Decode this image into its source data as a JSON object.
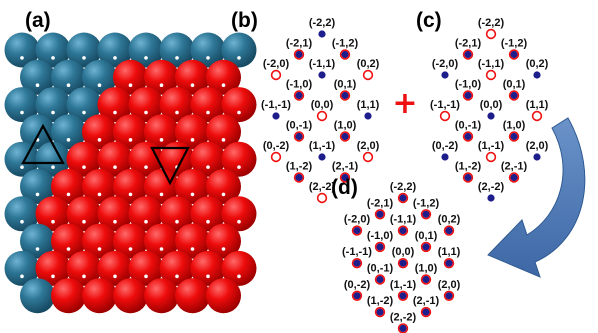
{
  "panels": {
    "a": {
      "label": "(a)"
    },
    "b": {
      "label": "(b)"
    },
    "c": {
      "label": "(c)"
    },
    "d": {
      "label": "(d)"
    }
  },
  "colors": {
    "blue_sphere": "#2b7192",
    "red_sphere": "#e60000",
    "blue_dot": "#1d1d8c",
    "red_ring": "#ee1111",
    "plus": "#ee1111",
    "arrow": "#4a78b5"
  },
  "operator": "+",
  "spot_patterns": {
    "b": [
      {
        "hk": "(-2,2)",
        "kind": "blue"
      },
      {
        "hk": "(-2,1)",
        "kind": "both"
      },
      {
        "hk": "(-1,2)",
        "kind": "both"
      },
      {
        "hk": "(-2,0)",
        "kind": "red"
      },
      {
        "hk": "(-1,1)",
        "kind": "blue"
      },
      {
        "hk": "(0,2)",
        "kind": "red"
      },
      {
        "hk": "(-1,0)",
        "kind": "both"
      },
      {
        "hk": "(0,1)",
        "kind": "both"
      },
      {
        "hk": "(-1,-1)",
        "kind": "blue"
      },
      {
        "hk": "(0,0)",
        "kind": "red"
      },
      {
        "hk": "(1,1)",
        "kind": "blue"
      },
      {
        "hk": "(0,-1)",
        "kind": "both"
      },
      {
        "hk": "(1,0)",
        "kind": "both"
      },
      {
        "hk": "(0,-2)",
        "kind": "red"
      },
      {
        "hk": "(1,-1)",
        "kind": "blue"
      },
      {
        "hk": "(2,0)",
        "kind": "red"
      },
      {
        "hk": "(1,-2)",
        "kind": "both"
      },
      {
        "hk": "(2,-1)",
        "kind": "both"
      },
      {
        "hk": "(2,-2)",
        "kind": "red"
      }
    ],
    "c": [
      {
        "hk": "(-2,2)",
        "kind": "red"
      },
      {
        "hk": "(-2,1)",
        "kind": "both"
      },
      {
        "hk": "(-1,2)",
        "kind": "both"
      },
      {
        "hk": "(-2,0)",
        "kind": "blue"
      },
      {
        "hk": "(-1,1)",
        "kind": "red"
      },
      {
        "hk": "(0,2)",
        "kind": "blue"
      },
      {
        "hk": "(-1,0)",
        "kind": "both"
      },
      {
        "hk": "(0,1)",
        "kind": "both"
      },
      {
        "hk": "(-1,-1)",
        "kind": "red"
      },
      {
        "hk": "(0,0)",
        "kind": "blue"
      },
      {
        "hk": "(1,1)",
        "kind": "red"
      },
      {
        "hk": "(0,-1)",
        "kind": "both"
      },
      {
        "hk": "(1,0)",
        "kind": "both"
      },
      {
        "hk": "(0,-2)",
        "kind": "blue"
      },
      {
        "hk": "(1,-1)",
        "kind": "red"
      },
      {
        "hk": "(2,0)",
        "kind": "blue"
      },
      {
        "hk": "(1,-2)",
        "kind": "both"
      },
      {
        "hk": "(2,-1)",
        "kind": "both"
      },
      {
        "hk": "(2,-2)",
        "kind": "blue"
      }
    ],
    "d": [
      {
        "hk": "(-2,2)",
        "kind": "both"
      },
      {
        "hk": "(-2,1)",
        "kind": "both"
      },
      {
        "hk": "(-1,2)",
        "kind": "both"
      },
      {
        "hk": "(-2,0)",
        "kind": "both"
      },
      {
        "hk": "(-1,1)",
        "kind": "both"
      },
      {
        "hk": "(0,2)",
        "kind": "both"
      },
      {
        "hk": "(-1,0)",
        "kind": "both"
      },
      {
        "hk": "(0,1)",
        "kind": "both"
      },
      {
        "hk": "(-1,-1)",
        "kind": "both"
      },
      {
        "hk": "(0,0)",
        "kind": "both"
      },
      {
        "hk": "(1,1)",
        "kind": "both"
      },
      {
        "hk": "(0,-1)",
        "kind": "both"
      },
      {
        "hk": "(1,0)",
        "kind": "both"
      },
      {
        "hk": "(0,-2)",
        "kind": "both"
      },
      {
        "hk": "(1,-1)",
        "kind": "both"
      },
      {
        "hk": "(2,0)",
        "kind": "both"
      },
      {
        "hk": "(1,-2)",
        "kind": "both"
      },
      {
        "hk": "(2,-1)",
        "kind": "both"
      },
      {
        "hk": "(2,-2)",
        "kind": "both"
      }
    ]
  },
  "lattice_markers": [
    {
      "shape": "triangle-up",
      "over": "blue domain"
    },
    {
      "shape": "triangle-down",
      "over": "red domain"
    }
  ]
}
